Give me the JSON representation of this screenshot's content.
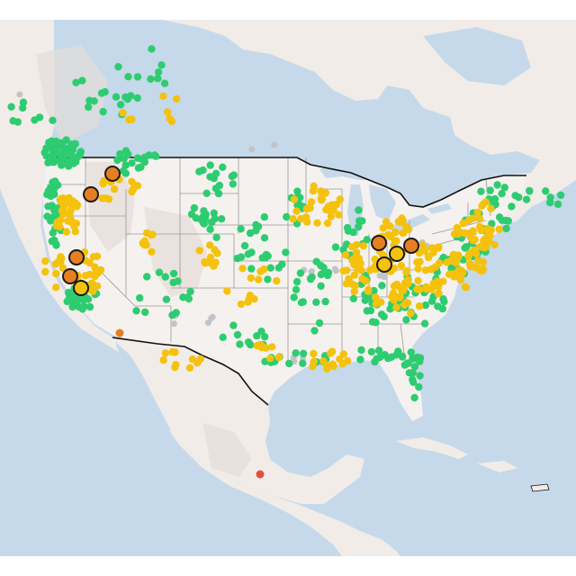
{
  "map": {
    "colors": {
      "ocean": "#c5d9ea",
      "land": "#f2ece8",
      "us_land": "#f5f1ee",
      "state_line": "#9a9a9a",
      "border": "#111111",
      "relief": "#e4ddd8"
    },
    "marker_categories": [
      {
        "key": "good",
        "color": "#2ecc71"
      },
      {
        "key": "moderate",
        "color": "#f4c20d"
      },
      {
        "key": "unhealthy_sensitive",
        "color": "#e67e22"
      },
      {
        "key": "unhealthy",
        "color": "#e74c3c"
      },
      {
        "key": "no_data",
        "color": "#c0c4c8"
      }
    ],
    "highlighted_markers": [
      {
        "id": "h1",
        "category": "unhealthy_sensitive"
      },
      {
        "id": "h2",
        "category": "unhealthy_sensitive"
      },
      {
        "id": "h3",
        "category": "unhealthy_sensitive"
      },
      {
        "id": "h4",
        "category": "unhealthy_sensitive"
      },
      {
        "id": "h5",
        "category": "moderate"
      },
      {
        "id": "h6",
        "category": "unhealthy_sensitive"
      },
      {
        "id": "h7",
        "category": "moderate"
      },
      {
        "id": "h8",
        "category": "moderate"
      },
      {
        "id": "h9",
        "category": "unhealthy_sensitive"
      }
    ]
  }
}
